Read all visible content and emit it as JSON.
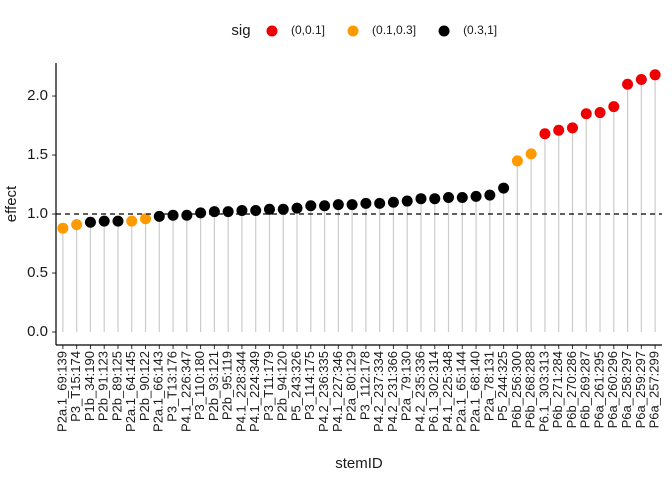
{
  "chart_data": {
    "type": "lollipop",
    "x_label": "stemID",
    "y_label": "effect",
    "legend": {
      "title": "sig",
      "levels": [
        {
          "name": "(0,0.1]",
          "color": "#ee0000"
        },
        {
          "name": "(0.1,0.3]",
          "color": "#ff9900"
        },
        {
          "name": "(0.3,1]",
          "color": "#000000"
        }
      ]
    },
    "categories": [
      "P2a.1_69:139",
      "P3_T15:174",
      "P1b_34:190",
      "P2b_91:123",
      "P2b_89:125",
      "P2a.1_64:145",
      "P2b_90:122",
      "P2a.1_66:143",
      "P3_T13:176",
      "P4.1_226:347",
      "P3_110:180",
      "P2b_93:121",
      "P2b_95:119",
      "P4.1_228:344",
      "P4.1_224:349",
      "P3_T11:179",
      "P2b_94:120",
      "P5_243:326",
      "P3_114:175",
      "P4.2_236:335",
      "P4.1_227:346",
      "P2a_80:129",
      "P3_112:178",
      "P4.2_237:334",
      "P4.2_231:366",
      "P2a_79:130",
      "P4.2_235:336",
      "P6.1_302:314",
      "P4.1_225:348",
      "P2a.1_65:144",
      "P2a.1_68:140",
      "P2a_78:131",
      "P5_244:325",
      "P6b_256:300",
      "P6b_268:288",
      "P6.1_303:313",
      "P6b_271:284",
      "P6b_270:286",
      "P6b_269:287",
      "P6a_261:295",
      "P6a_260:296",
      "P6a_258:297",
      "P6a_259:297",
      "P6a_257:299"
    ],
    "values": [
      0.88,
      0.91,
      0.93,
      0.94,
      0.94,
      0.94,
      0.96,
      0.98,
      0.99,
      0.99,
      1.01,
      1.02,
      1.02,
      1.03,
      1.03,
      1.04,
      1.04,
      1.05,
      1.07,
      1.07,
      1.08,
      1.08,
      1.09,
      1.09,
      1.1,
      1.11,
      1.13,
      1.13,
      1.14,
      1.14,
      1.15,
      1.16,
      1.22,
      1.45,
      1.51,
      1.68,
      1.71,
      1.73,
      1.85,
      1.86,
      1.91,
      2.1,
      2.14,
      2.18
    ],
    "sig": [
      "(0.1,0.3]",
      "(0.1,0.3]",
      "(0.3,1]",
      "(0.3,1]",
      "(0.3,1]",
      "(0.1,0.3]",
      "(0.1,0.3]",
      "(0.3,1]",
      "(0.3,1]",
      "(0.3,1]",
      "(0.3,1]",
      "(0.3,1]",
      "(0.3,1]",
      "(0.3,1]",
      "(0.3,1]",
      "(0.3,1]",
      "(0.3,1]",
      "(0.3,1]",
      "(0.3,1]",
      "(0.3,1]",
      "(0.3,1]",
      "(0.3,1]",
      "(0.3,1]",
      "(0.3,1]",
      "(0.3,1]",
      "(0.3,1]",
      "(0.3,1]",
      "(0.3,1]",
      "(0.3,1]",
      "(0.3,1]",
      "(0.3,1]",
      "(0.3,1]",
      "(0.3,1]",
      "(0.1,0.3]",
      "(0.1,0.3]",
      "(0,0.1]",
      "(0,0.1]",
      "(0,0.1]",
      "(0,0.1]",
      "(0,0.1]",
      "(0,0.1]",
      "(0,0.1]",
      "(0,0.1]",
      "(0,0.1]"
    ],
    "ylim": [
      -0.11,
      2.28
    ],
    "yticks": [
      {
        "value": 0,
        "label": "0.0"
      },
      0.5,
      {
        "value": 1,
        "label": "1.0"
      },
      1.5,
      {
        "value": 2,
        "label": "2.0"
      }
    ],
    "hline": 1
  }
}
